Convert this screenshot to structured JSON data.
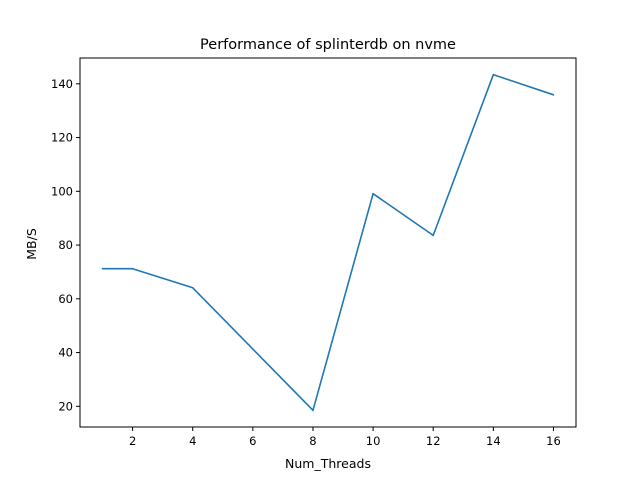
{
  "chart_data": {
    "type": "line",
    "title": "Performance of splinterdb on nvme",
    "xlabel": "Num_Threads",
    "ylabel": "MB/S",
    "xlim": [
      0.25,
      16.75
    ],
    "ylim": [
      12.3,
      149.6
    ],
    "xticks": [
      2,
      4,
      6,
      8,
      10,
      12,
      14,
      16
    ],
    "yticks": [
      20,
      40,
      60,
      80,
      100,
      120,
      140
    ],
    "grid": false,
    "series": [
      {
        "x": [
          1,
          2,
          4,
          8,
          10,
          12,
          14,
          16
        ],
        "y": [
          71.2,
          71.2,
          64.1,
          18.5,
          99.1,
          83.6,
          143.4,
          135.9
        ],
        "color": "#1f77b4"
      }
    ]
  }
}
